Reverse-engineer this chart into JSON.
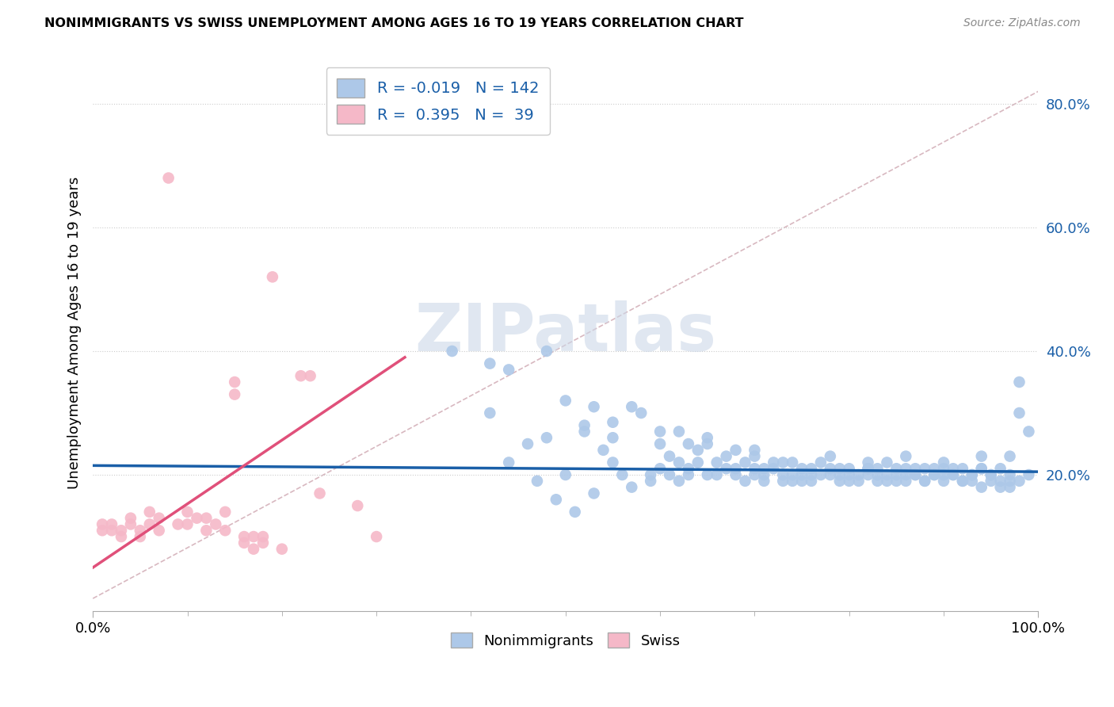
{
  "title": "NONIMMIGRANTS VS SWISS UNEMPLOYMENT AMONG AGES 16 TO 19 YEARS CORRELATION CHART",
  "source": "Source: ZipAtlas.com",
  "ylabel": "Unemployment Among Ages 16 to 19 years",
  "xlim": [
    0.0,
    1.0
  ],
  "ylim": [
    -0.02,
    0.88
  ],
  "blue_R": "-0.019",
  "blue_N": "142",
  "pink_R": "0.395",
  "pink_N": "39",
  "blue_color": "#adc8e8",
  "pink_color": "#f5b8c8",
  "blue_line_color": "#1a5fa8",
  "pink_line_color": "#e0507a",
  "dash_color": "#d8b8c0",
  "watermark_text": "ZIPatlas",
  "watermark_color": "#ccd8e8",
  "blue_scatter": [
    [
      0.38,
      0.4
    ],
    [
      0.42,
      0.38
    ],
    [
      0.44,
      0.37
    ],
    [
      0.48,
      0.4
    ],
    [
      0.5,
      0.32
    ],
    [
      0.52,
      0.27
    ],
    [
      0.53,
      0.31
    ],
    [
      0.55,
      0.285
    ],
    [
      0.55,
      0.26
    ],
    [
      0.57,
      0.31
    ],
    [
      0.58,
      0.3
    ],
    [
      0.44,
      0.22
    ],
    [
      0.47,
      0.19
    ],
    [
      0.49,
      0.16
    ],
    [
      0.51,
      0.14
    ],
    [
      0.53,
      0.17
    ],
    [
      0.54,
      0.24
    ],
    [
      0.56,
      0.2
    ],
    [
      0.57,
      0.18
    ],
    [
      0.59,
      0.19
    ],
    [
      0.6,
      0.25
    ],
    [
      0.6,
      0.21
    ],
    [
      0.61,
      0.23
    ],
    [
      0.62,
      0.27
    ],
    [
      0.62,
      0.22
    ],
    [
      0.63,
      0.25
    ],
    [
      0.64,
      0.24
    ],
    [
      0.65,
      0.26
    ],
    [
      0.65,
      0.2
    ],
    [
      0.66,
      0.22
    ],
    [
      0.67,
      0.23
    ],
    [
      0.68,
      0.21
    ],
    [
      0.68,
      0.24
    ],
    [
      0.69,
      0.22
    ],
    [
      0.7,
      0.2
    ],
    [
      0.7,
      0.23
    ],
    [
      0.71,
      0.21
    ],
    [
      0.72,
      0.22
    ],
    [
      0.73,
      0.19
    ],
    [
      0.73,
      0.22
    ],
    [
      0.74,
      0.2
    ],
    [
      0.75,
      0.21
    ],
    [
      0.75,
      0.19
    ],
    [
      0.76,
      0.21
    ],
    [
      0.76,
      0.2
    ],
    [
      0.77,
      0.22
    ],
    [
      0.78,
      0.2
    ],
    [
      0.79,
      0.19
    ],
    [
      0.8,
      0.21
    ],
    [
      0.8,
      0.2
    ],
    [
      0.81,
      0.19
    ],
    [
      0.82,
      0.21
    ],
    [
      0.82,
      0.2
    ],
    [
      0.83,
      0.19
    ],
    [
      0.83,
      0.21
    ],
    [
      0.84,
      0.2
    ],
    [
      0.85,
      0.19
    ],
    [
      0.85,
      0.21
    ],
    [
      0.86,
      0.2
    ],
    [
      0.86,
      0.19
    ],
    [
      0.87,
      0.21
    ],
    [
      0.87,
      0.2
    ],
    [
      0.88,
      0.19
    ],
    [
      0.88,
      0.21
    ],
    [
      0.89,
      0.2
    ],
    [
      0.89,
      0.21
    ],
    [
      0.9,
      0.19
    ],
    [
      0.9,
      0.2
    ],
    [
      0.91,
      0.21
    ],
    [
      0.91,
      0.2
    ],
    [
      0.92,
      0.19
    ],
    [
      0.92,
      0.21
    ],
    [
      0.93,
      0.2
    ],
    [
      0.93,
      0.19
    ],
    [
      0.94,
      0.18
    ],
    [
      0.94,
      0.21
    ],
    [
      0.95,
      0.2
    ],
    [
      0.95,
      0.19
    ],
    [
      0.96,
      0.18
    ],
    [
      0.96,
      0.21
    ],
    [
      0.97,
      0.2
    ],
    [
      0.97,
      0.19
    ],
    [
      0.97,
      0.23
    ],
    [
      0.98,
      0.3
    ],
    [
      0.59,
      0.2
    ],
    [
      0.61,
      0.2
    ],
    [
      0.62,
      0.19
    ],
    [
      0.63,
      0.21
    ],
    [
      0.64,
      0.22
    ],
    [
      0.66,
      0.2
    ],
    [
      0.67,
      0.21
    ],
    [
      0.68,
      0.2
    ],
    [
      0.69,
      0.19
    ],
    [
      0.7,
      0.21
    ],
    [
      0.71,
      0.2
    ],
    [
      0.72,
      0.21
    ],
    [
      0.73,
      0.2
    ],
    [
      0.74,
      0.19
    ],
    [
      0.75,
      0.2
    ],
    [
      0.76,
      0.19
    ],
    [
      0.77,
      0.2
    ],
    [
      0.78,
      0.21
    ],
    [
      0.79,
      0.2
    ],
    [
      0.8,
      0.19
    ],
    [
      0.81,
      0.2
    ],
    [
      0.82,
      0.21
    ],
    [
      0.83,
      0.2
    ],
    [
      0.84,
      0.19
    ],
    [
      0.85,
      0.2
    ],
    [
      0.86,
      0.21
    ],
    [
      0.87,
      0.2
    ],
    [
      0.88,
      0.19
    ],
    [
      0.89,
      0.2
    ],
    [
      0.9,
      0.21
    ],
    [
      0.91,
      0.2
    ],
    [
      0.92,
      0.19
    ],
    [
      0.93,
      0.2
    ],
    [
      0.94,
      0.21
    ],
    [
      0.95,
      0.2
    ],
    [
      0.96,
      0.19
    ],
    [
      0.97,
      0.18
    ],
    [
      0.98,
      0.19
    ],
    [
      0.99,
      0.2
    ],
    [
      0.99,
      0.27
    ],
    [
      0.5,
      0.2
    ],
    [
      0.55,
      0.22
    ],
    [
      0.6,
      0.27
    ],
    [
      0.65,
      0.25
    ],
    [
      0.7,
      0.24
    ],
    [
      0.74,
      0.22
    ],
    [
      0.78,
      0.23
    ],
    [
      0.82,
      0.22
    ],
    [
      0.86,
      0.23
    ],
    [
      0.9,
      0.22
    ],
    [
      0.94,
      0.23
    ],
    [
      0.98,
      0.35
    ],
    [
      0.42,
      0.3
    ],
    [
      0.46,
      0.25
    ],
    [
      0.48,
      0.26
    ],
    [
      0.52,
      0.28
    ],
    [
      0.63,
      0.2
    ],
    [
      0.71,
      0.19
    ],
    [
      0.79,
      0.21
    ],
    [
      0.84,
      0.22
    ]
  ],
  "pink_scatter": [
    [
      0.01,
      0.12
    ],
    [
      0.01,
      0.11
    ],
    [
      0.02,
      0.12
    ],
    [
      0.02,
      0.11
    ],
    [
      0.03,
      0.11
    ],
    [
      0.03,
      0.1
    ],
    [
      0.04,
      0.13
    ],
    [
      0.04,
      0.12
    ],
    [
      0.05,
      0.11
    ],
    [
      0.05,
      0.1
    ],
    [
      0.06,
      0.14
    ],
    [
      0.06,
      0.12
    ],
    [
      0.07,
      0.13
    ],
    [
      0.07,
      0.11
    ],
    [
      0.08,
      0.68
    ],
    [
      0.09,
      0.12
    ],
    [
      0.1,
      0.14
    ],
    [
      0.1,
      0.12
    ],
    [
      0.11,
      0.13
    ],
    [
      0.12,
      0.11
    ],
    [
      0.12,
      0.13
    ],
    [
      0.13,
      0.12
    ],
    [
      0.14,
      0.11
    ],
    [
      0.14,
      0.14
    ],
    [
      0.15,
      0.35
    ],
    [
      0.15,
      0.33
    ],
    [
      0.16,
      0.1
    ],
    [
      0.16,
      0.09
    ],
    [
      0.17,
      0.1
    ],
    [
      0.17,
      0.08
    ],
    [
      0.18,
      0.09
    ],
    [
      0.18,
      0.1
    ],
    [
      0.19,
      0.52
    ],
    [
      0.22,
      0.36
    ],
    [
      0.23,
      0.36
    ],
    [
      0.24,
      0.17
    ],
    [
      0.28,
      0.15
    ],
    [
      0.3,
      0.1
    ],
    [
      0.2,
      0.08
    ]
  ],
  "blue_line_x": [
    0.0,
    1.0
  ],
  "blue_line_y": [
    0.215,
    0.205
  ],
  "pink_line_x": [
    0.0,
    0.33
  ],
  "pink_line_y": [
    0.05,
    0.39
  ],
  "dash_line_x": [
    0.0,
    1.0
  ],
  "dash_line_y": [
    0.0,
    0.82
  ]
}
